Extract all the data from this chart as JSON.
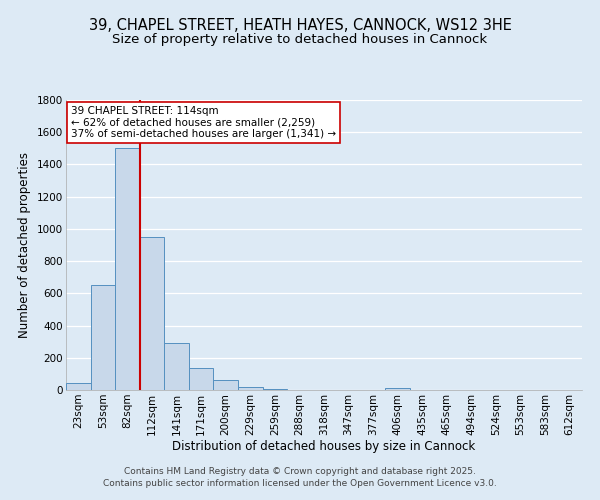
{
  "title_line1": "39, CHAPEL STREET, HEATH HAYES, CANNOCK, WS12 3HE",
  "title_line2": "Size of property relative to detached houses in Cannock",
  "xlabel": "Distribution of detached houses by size in Cannock",
  "ylabel": "Number of detached properties",
  "bin_labels": [
    "23sqm",
    "53sqm",
    "82sqm",
    "112sqm",
    "141sqm",
    "171sqm",
    "200sqm",
    "229sqm",
    "259sqm",
    "288sqm",
    "318sqm",
    "347sqm",
    "377sqm",
    "406sqm",
    "435sqm",
    "465sqm",
    "494sqm",
    "524sqm",
    "553sqm",
    "583sqm",
    "612sqm"
  ],
  "bar_values": [
    45,
    650,
    1500,
    950,
    290,
    135,
    60,
    20,
    8,
    3,
    2,
    1,
    0,
    10,
    0,
    0,
    0,
    0,
    0,
    0,
    0
  ],
  "bar_color": "#c8d8ea",
  "bar_edge_color": "#5590c0",
  "background_color": "#ddeaf5",
  "grid_color": "#ffffff",
  "vline_color": "#cc0000",
  "annotation_box_facecolor": "#ffffff",
  "annotation_box_edgecolor": "#cc0000",
  "ylim_max": 1800,
  "yticks": [
    0,
    200,
    400,
    600,
    800,
    1000,
    1200,
    1400,
    1600,
    1800
  ],
  "footer_line1": "Contains HM Land Registry data © Crown copyright and database right 2025.",
  "footer_line2": "Contains public sector information licensed under the Open Government Licence v3.0.",
  "title_fontsize": 10.5,
  "subtitle_fontsize": 9.5,
  "axis_label_fontsize": 8.5,
  "tick_fontsize": 7.5,
  "annotation_fontsize": 7.5,
  "footer_fontsize": 6.5
}
